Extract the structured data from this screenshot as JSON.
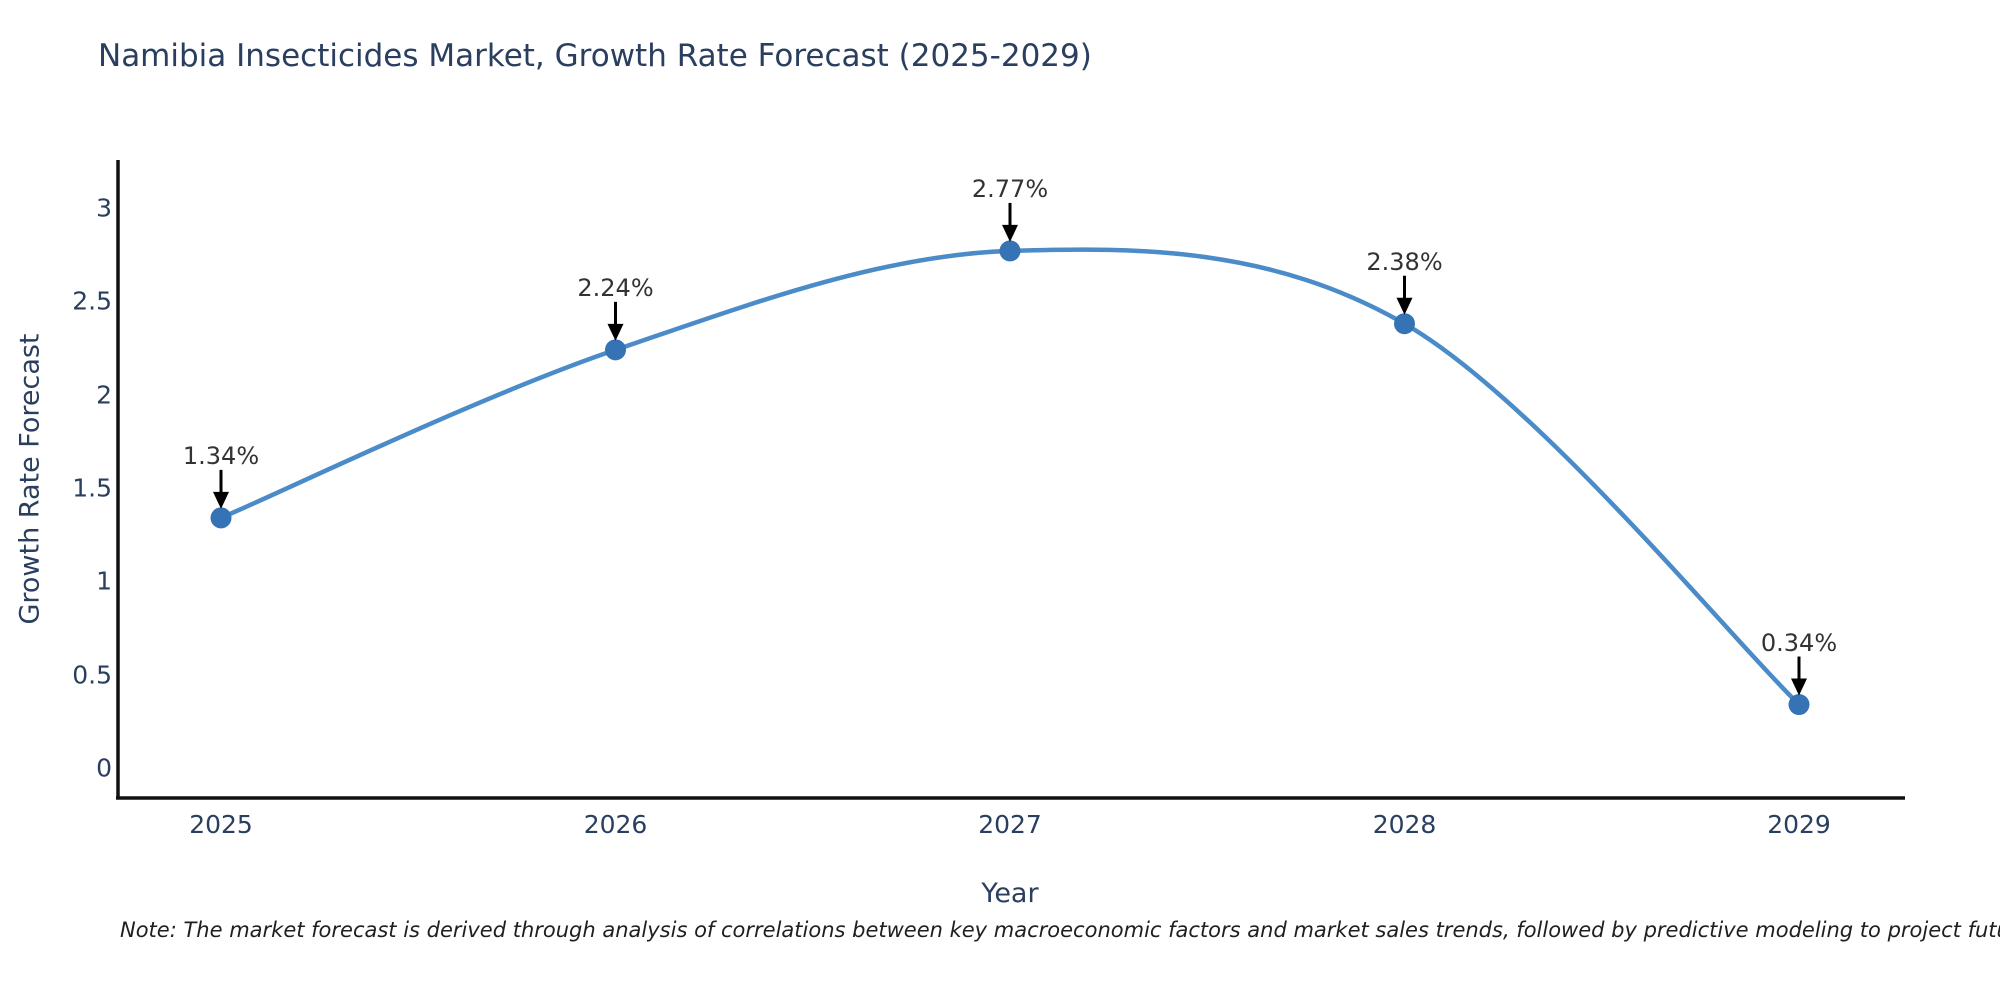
{
  "note": "Note: The market forecast is derived through analysis of correlations between key macroeconomic factors and market sales trends, followed by predictive modeling to project future sales",
  "chart_data": {
    "type": "line",
    "title": "Namibia Insecticides Market, Growth Rate Forecast (2025-2029)",
    "xlabel": "Year",
    "ylabel": "Growth Rate Forecast",
    "categories": [
      "2025",
      "2026",
      "2027",
      "2028",
      "2029"
    ],
    "values": [
      1.34,
      2.24,
      2.77,
      2.38,
      0.34
    ],
    "point_labels": [
      "1.34%",
      "2.24%",
      "2.77%",
      "2.38%",
      "0.34%"
    ],
    "yticks": [
      "0",
      "0.5",
      "1",
      "1.5",
      "2",
      "2.5",
      "3"
    ],
    "ytick_values": [
      0,
      0.5,
      1,
      1.5,
      2,
      2.5,
      3
    ],
    "ylim": [
      0,
      3.26
    ],
    "line_shape": "spline",
    "grid": "off",
    "legend": "none",
    "colors": {
      "line": "#4a8bc8",
      "marker": "#3573b4",
      "axis": "#111111",
      "title_text": "#2a3f5f",
      "tick_text": "#2a3f5f",
      "annotation_text": "#333333",
      "annotation_arrow": "#000000"
    }
  }
}
